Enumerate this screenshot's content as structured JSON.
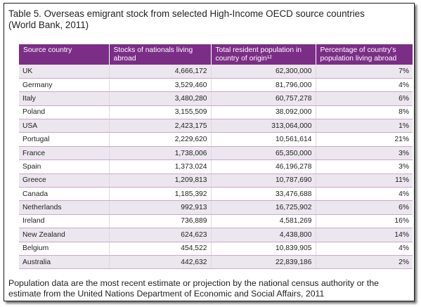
{
  "title": {
    "line1": "Table 5. Overseas emigrant stock from selected High-Income OECD source countries",
    "line2": "(World Bank, 2011)"
  },
  "table": {
    "headers": [
      "Source country",
      "Stocks of nationals living abroad",
      "Total resident population in country of origin¹²",
      "Percentage of country’s population living abroad"
    ],
    "rows": [
      [
        "UK",
        "4,666,172",
        "62,300,000",
        "7%"
      ],
      [
        "Germany",
        "3,529,460",
        "81,796,000",
        "4%"
      ],
      [
        "Italy",
        "3,480,280",
        "60,757,278",
        "6%"
      ],
      [
        "Poland",
        "3,155,509",
        "38,092,000",
        "8%"
      ],
      [
        "USA",
        "2,423,175",
        "313,064,000",
        "1%"
      ],
      [
        "Portugal",
        "2,229,620",
        "10,561,614",
        "21%"
      ],
      [
        "France",
        "1,738,006",
        "65,350,000",
        "3%"
      ],
      [
        "Spain",
        "1,373,024",
        "46,196,278",
        "3%"
      ],
      [
        "Greece",
        "1,209,813",
        "10,787,690",
        "11%"
      ],
      [
        "Canada",
        "1,185,392",
        "33,476,688",
        "4%"
      ],
      [
        "Netherlands",
        "992,913",
        "16,725,902",
        "6%"
      ],
      [
        "Ireland",
        "736,889",
        "4,581,269",
        "16%"
      ],
      [
        "New Zealand",
        "624,623",
        "4,438,800",
        "14%"
      ],
      [
        "Belgium",
        "454,522",
        "10,839,905",
        "4%"
      ],
      [
        "Australia",
        "442,632",
        "22,839,186",
        "2%"
      ]
    ]
  },
  "note": {
    "line1": "Population data are the most recent estimate or projection by the national census authority or  the",
    "line2": "estimate from  the United Nations Department of Economic and Social Affairs, 2011"
  },
  "colors": {
    "header_bg": "#7b2e86",
    "row_alt_bg": "#ece6ee",
    "row_border": "#c9a8cd"
  }
}
